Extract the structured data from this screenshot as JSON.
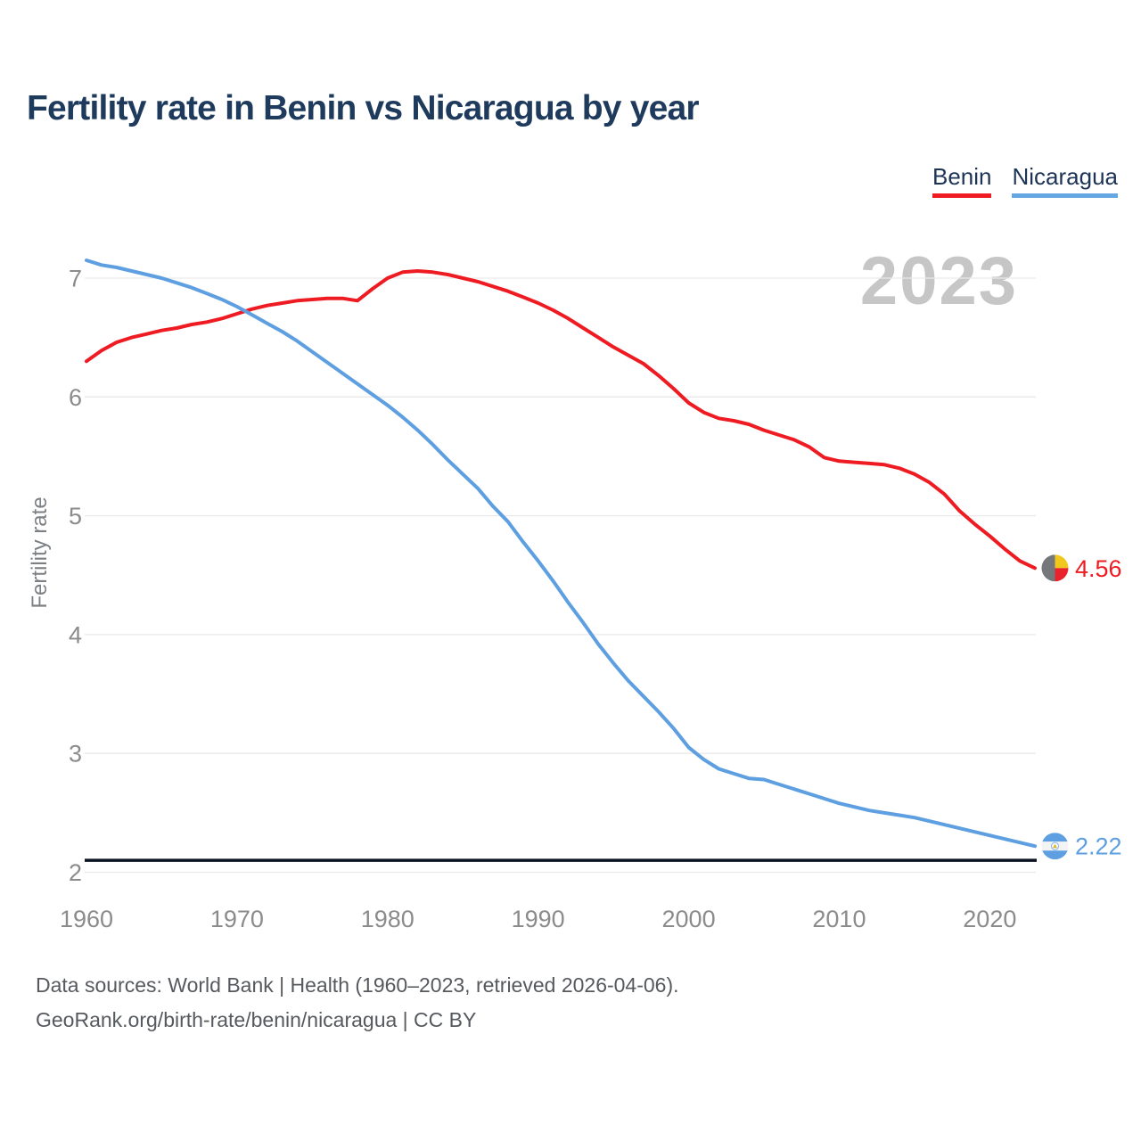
{
  "page": {
    "title": "Fertility rate in Benin vs Nicaragua by year",
    "footer_line1": "Data sources: World Bank | Health (1960–2023, retrieved 2026-04-06).",
    "footer_line2": "GeoRank.org/birth-rate/benin/nicaragua | CC BY"
  },
  "legend": {
    "items": [
      {
        "label": "Benin",
        "color": "#ee1c22"
      },
      {
        "label": "Nicaragua",
        "color": "#64a7e2"
      }
    ]
  },
  "chart_data": {
    "type": "line",
    "title": "Fertility rate in Benin vs Nicaragua by year",
    "xlabel": "",
    "ylabel": "Fertility rate",
    "watermark": "2023",
    "x_start": 1960,
    "x_end": 2023,
    "xticks": [
      1960,
      1970,
      1980,
      1990,
      2000,
      2010,
      2020
    ],
    "yticks": [
      2,
      3,
      4,
      5,
      6,
      7
    ],
    "ylim": [
      2,
      7.3
    ],
    "grid": "horizontal",
    "legend_position": "top-right",
    "reference_line": {
      "value": 2.1,
      "color": "#0a1220"
    },
    "series": [
      {
        "name": "Benin",
        "color": "#ee1c22",
        "end_label": "4.56",
        "end_value": 4.56,
        "flag": "benin",
        "values": [
          6.3,
          6.39,
          6.46,
          6.5,
          6.53,
          6.56,
          6.58,
          6.61,
          6.63,
          6.66,
          6.7,
          6.74,
          6.77,
          6.79,
          6.81,
          6.82,
          6.83,
          6.83,
          6.81,
          6.91,
          7.0,
          7.05,
          7.06,
          7.05,
          7.03,
          7.0,
          6.97,
          6.93,
          6.89,
          6.84,
          6.79,
          6.73,
          6.66,
          6.58,
          6.5,
          6.42,
          6.35,
          6.28,
          6.18,
          6.07,
          5.95,
          5.87,
          5.82,
          5.8,
          5.77,
          5.72,
          5.68,
          5.64,
          5.58,
          5.49,
          5.46,
          5.45,
          5.44,
          5.43,
          5.4,
          5.35,
          5.28,
          5.18,
          5.04,
          4.93,
          4.83,
          4.72,
          4.62,
          4.56
        ]
      },
      {
        "name": "Nicaragua",
        "color": "#5d9fe0",
        "end_label": "2.22",
        "end_value": 2.22,
        "flag": "nicaragua",
        "values": [
          7.15,
          7.11,
          7.09,
          7.06,
          7.03,
          7.0,
          6.96,
          6.92,
          6.87,
          6.82,
          6.76,
          6.69,
          6.62,
          6.55,
          6.47,
          6.38,
          6.29,
          6.2,
          6.11,
          6.02,
          5.93,
          5.83,
          5.72,
          5.6,
          5.47,
          5.35,
          5.23,
          5.08,
          4.95,
          4.78,
          4.62,
          4.45,
          4.27,
          4.1,
          3.92,
          3.76,
          3.61,
          3.48,
          3.35,
          3.21,
          3.05,
          2.95,
          2.87,
          2.83,
          2.79,
          2.78,
          2.74,
          2.7,
          2.66,
          2.62,
          2.58,
          2.55,
          2.52,
          2.5,
          2.48,
          2.46,
          2.43,
          2.4,
          2.37,
          2.34,
          2.31,
          2.28,
          2.25,
          2.22
        ]
      }
    ]
  }
}
